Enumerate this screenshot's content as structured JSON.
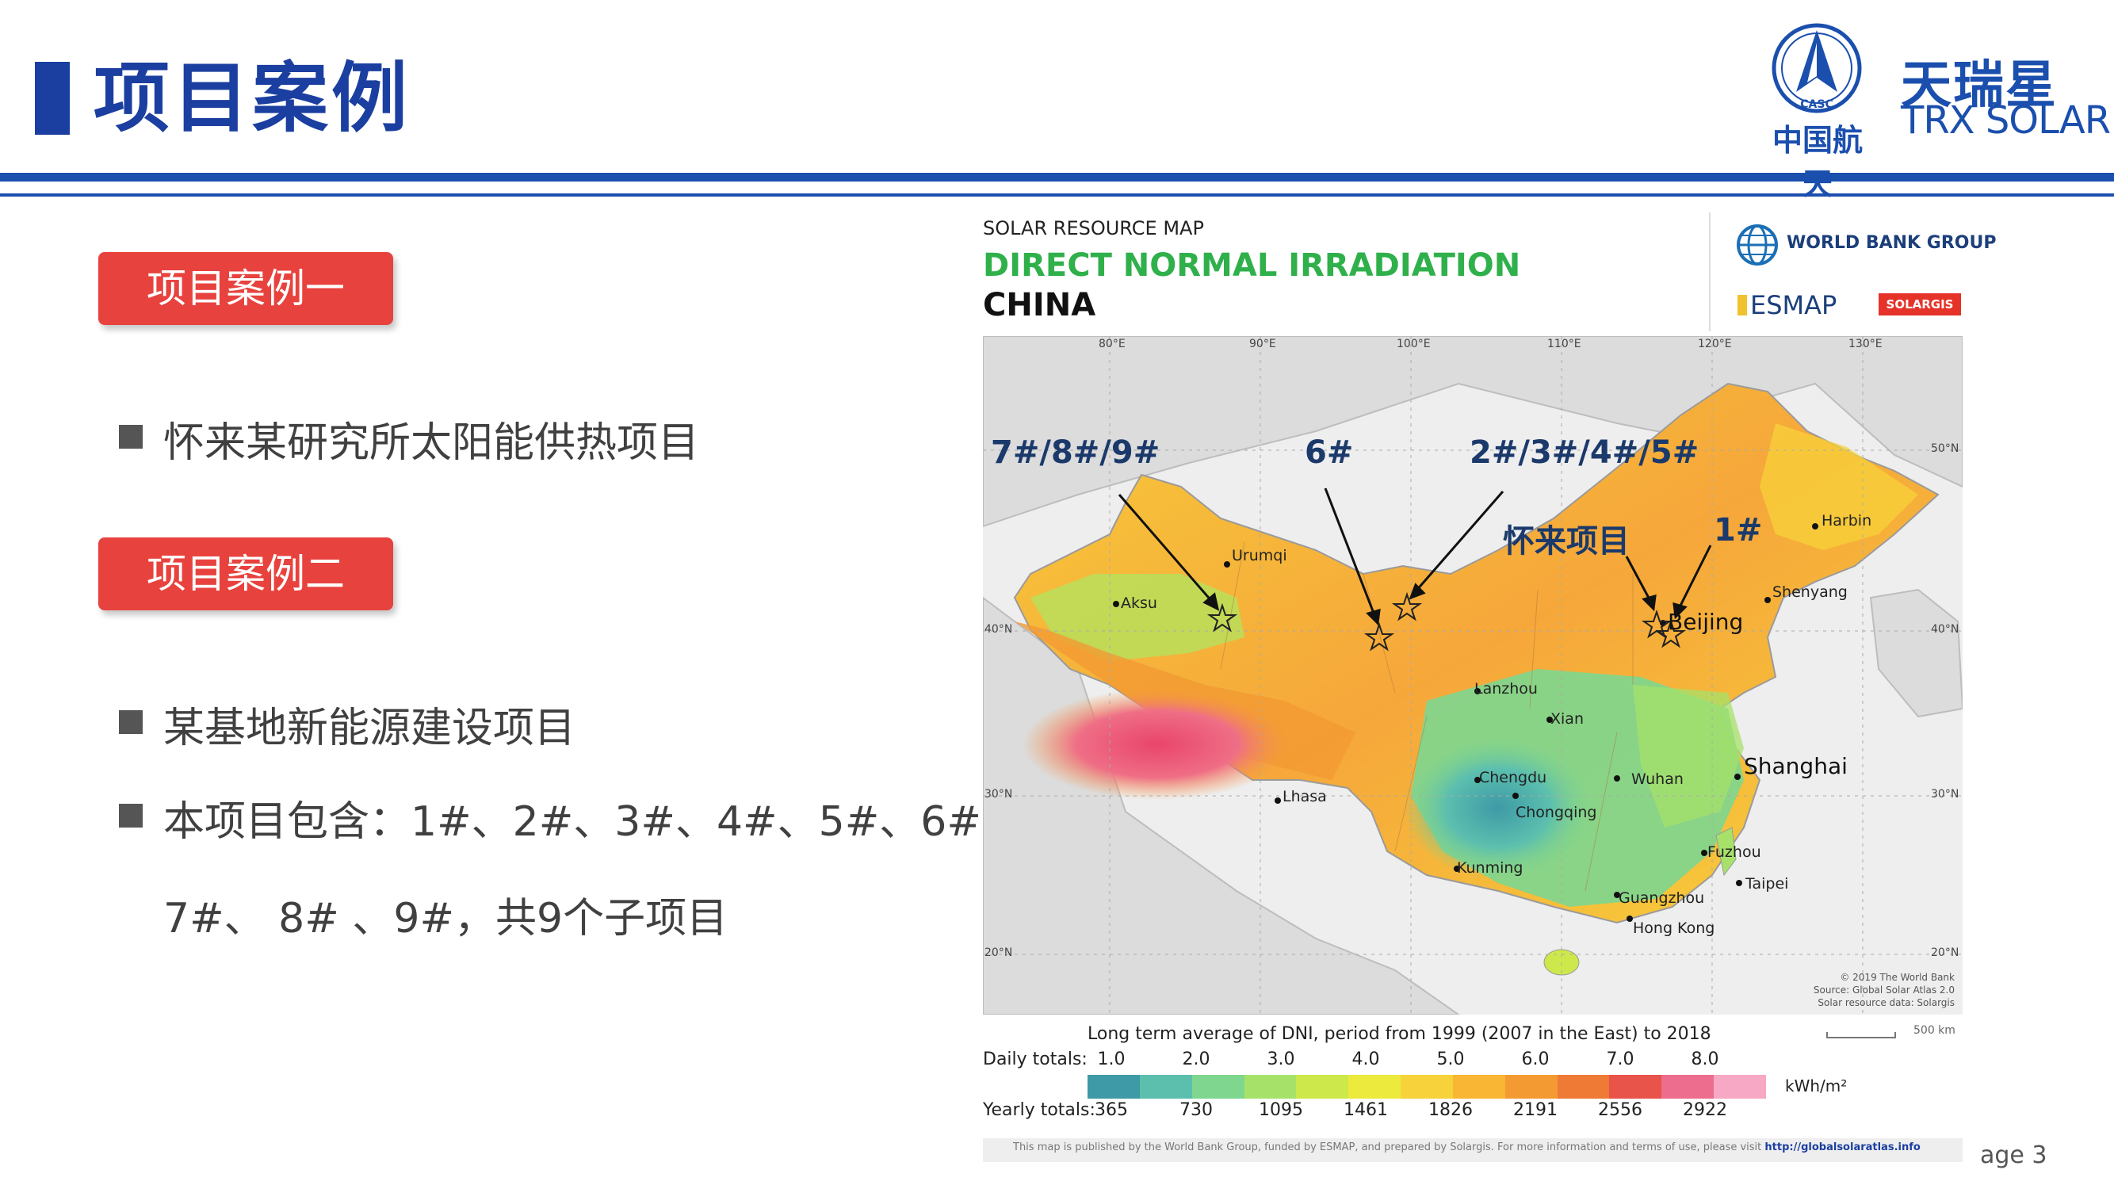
{
  "header": {
    "title": "项目案例",
    "logo_casc_emblem": "CASC",
    "logo_casc_cn": "中国航天",
    "logo_trx_cn": "天瑞星",
    "logo_trx_en": "TRX SOLAR"
  },
  "left": {
    "case1_label": "项目案例一",
    "case1_items": [
      "怀来某研究所太阳能供热项目"
    ],
    "case2_label": "项目案例二",
    "case2_items": [
      "某基地新能源建设项目",
      "本项目包含：1#、2#、3#、4#、5#、6#、",
      "7#、 8# 、9#，共9个子项目"
    ]
  },
  "map": {
    "kicker": "SOLAR RESOURCE MAP",
    "heading": "DIRECT NORMAL IRRADIATION",
    "country": "CHINA",
    "sponsor_wbg": "WORLD BANK GROUP",
    "sponsor_esmap": "ESMAP",
    "sponsor_solargis": "SOLARGIS",
    "lon_ticks": [
      "80°E",
      "90°E",
      "100°E",
      "110°E",
      "120°E",
      "130°E"
    ],
    "lat_ticks": [
      "50°N",
      "40°N",
      "30°N",
      "20°N"
    ],
    "cities": [
      "Urumqi",
      "Aksu",
      "Harbin",
      "Shenyang",
      "Beijing",
      "Lanzhou",
      "Xian",
      "Shanghai",
      "Chengdu",
      "Wuhan",
      "Chongqing",
      "Lhasa",
      "Fuzhou",
      "Kunming",
      "Taipei",
      "Guangzhou",
      "Hong Kong"
    ],
    "annotations": [
      "7#/8#/9#",
      "6#",
      "2#/3#/4#/5#",
      "怀来项目",
      "1#"
    ],
    "credits": [
      "© 2019 The World Bank",
      "Source: Global Solar Atlas 2.0",
      "Solar resource data: Solargis"
    ],
    "scale_label": "500 km"
  },
  "legend": {
    "caption": "Long term average of DNI, period from 1999 (2007 in the East) to 2018",
    "daily_label": "Daily totals:",
    "daily_values": [
      "1.0",
      "2.0",
      "3.0",
      "4.0",
      "5.0",
      "6.0",
      "7.0",
      "8.0"
    ],
    "yearly_label": "Yearly totals:",
    "yearly_values": [
      "365",
      "730",
      "1095",
      "1461",
      "1826",
      "2191",
      "2556",
      "2922"
    ],
    "unit": "kWh/m²",
    "colors": [
      "#3e9aa6",
      "#5cbfae",
      "#7fd68e",
      "#a6e26a",
      "#cde84a",
      "#ecea3c",
      "#f7d23a",
      "#f8b634",
      "#f39a33",
      "#ef7a36",
      "#e8534a",
      "#ec6d8d",
      "#f6a8c4"
    ]
  },
  "footer": {
    "text": "This map is published by the World Bank Group, funded by ESMAP, and prepared by Solargis. For more information and terms of use, please visit ",
    "link": "http://globalsolaratlas.info",
    "page_label": "age 3"
  }
}
